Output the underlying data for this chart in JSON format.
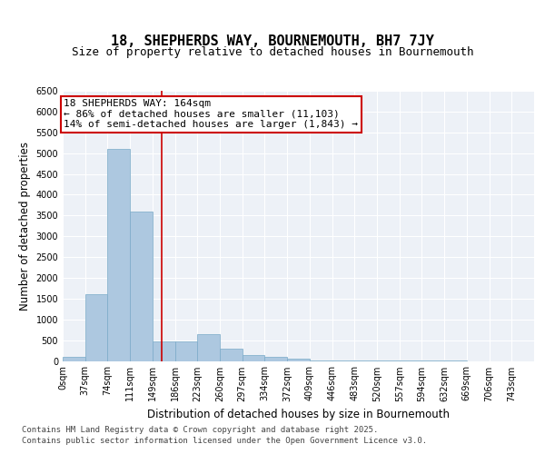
{
  "title": "18, SHEPHERDS WAY, BOURNEMOUTH, BH7 7JY",
  "subtitle": "Size of property relative to detached houses in Bournemouth",
  "xlabel": "Distribution of detached houses by size in Bournemouth",
  "ylabel": "Number of detached properties",
  "bar_color": "#adc8e0",
  "bar_edge_color": "#7aaac8",
  "background_color": "#edf1f7",
  "bin_labels": [
    "0sqm",
    "37sqm",
    "74sqm",
    "111sqm",
    "149sqm",
    "186sqm",
    "223sqm",
    "260sqm",
    "297sqm",
    "334sqm",
    "372sqm",
    "409sqm",
    "446sqm",
    "483sqm",
    "520sqm",
    "557sqm",
    "594sqm",
    "632sqm",
    "669sqm",
    "706sqm",
    "743sqm"
  ],
  "values": [
    100,
    1600,
    5100,
    3600,
    480,
    460,
    650,
    300,
    150,
    100,
    50,
    20,
    10,
    5,
    3,
    2,
    1,
    1,
    0,
    0,
    0
  ],
  "property_bin": 4.4,
  "property_line_color": "#cc0000",
  "annotation_box_color": "#cc0000",
  "annotation_text": "18 SHEPHERDS WAY: 164sqm\n← 86% of detached houses are smaller (11,103)\n14% of semi-detached houses are larger (1,843) →",
  "annotation_fontsize": 8,
  "ylim": [
    0,
    6500
  ],
  "yticks": [
    0,
    500,
    1000,
    1500,
    2000,
    2500,
    3000,
    3500,
    4000,
    4500,
    5000,
    5500,
    6000,
    6500
  ],
  "footer_line1": "Contains HM Land Registry data © Crown copyright and database right 2025.",
  "footer_line2": "Contains public sector information licensed under the Open Government Licence v3.0.",
  "title_fontsize": 11,
  "subtitle_fontsize": 9,
  "axis_label_fontsize": 8.5,
  "tick_fontsize": 7,
  "footer_fontsize": 6.5
}
